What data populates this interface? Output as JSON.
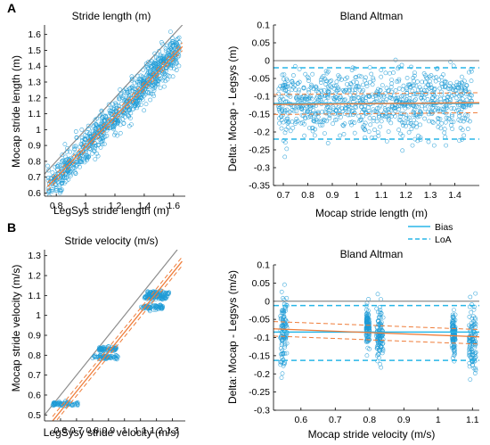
{
  "figure": {
    "panel_labels": [
      "A",
      "B"
    ],
    "legend": {
      "entries": [
        {
          "label": "Bias",
          "color": "#29b6e8",
          "style": "solid"
        },
        {
          "label": "LoA",
          "color": "#29b6e8",
          "style": "dashed"
        }
      ]
    },
    "colors": {
      "points": "#1f9bd6",
      "identity": "#8c8c8c",
      "regression": "#ef7d3a",
      "bias": "#29b6e8",
      "loa": "#29b6e8",
      "zero": "#8c8c8c"
    }
  },
  "chart_data": [
    {
      "type": "scatter",
      "title": "Stride length (m)",
      "xlabel": "LegSys stride length (m)",
      "ylabel": "Mocap stride length (m)",
      "xlim": [
        0.72,
        1.68
      ],
      "ylim": [
        0.58,
        1.66
      ],
      "xticks": [
        0.8,
        1,
        1.2,
        1.4,
        1.6
      ],
      "xticklabels": [
        "0.8",
        "1",
        "1.2",
        "1.4",
        "1.6"
      ],
      "yticks": [
        0.6,
        0.7,
        0.8,
        0.9,
        1.0,
        1.1,
        1.2,
        1.3,
        1.4,
        1.5,
        1.6
      ],
      "yticklabels": [
        "0.6",
        "0.7",
        "0.8",
        "0.9",
        "1",
        "1.1",
        "1.2",
        "1.3",
        "1.4",
        "1.5",
        "1.6"
      ],
      "identity_line": true,
      "regression": {
        "slope": 0.96,
        "intercept": -0.07,
        "ci_offset": 0.025
      },
      "points": {
        "n": 900,
        "x_range": [
          0.74,
          1.64
        ],
        "offset": -0.12,
        "spread": 0.055
      }
    },
    {
      "type": "scatter",
      "title": "Bland Altman",
      "xlabel": "Mocap stride length (m)",
      "ylabel": "Delta: Mocap - Legsys (m)",
      "xlim": [
        0.66,
        1.5
      ],
      "ylim": [
        -0.35,
        0.1
      ],
      "xticks": [
        0.7,
        0.8,
        0.9,
        1.0,
        1.1,
        1.2,
        1.3,
        1.4
      ],
      "xticklabels": [
        "0.7",
        "0.8",
        "0.9",
        "1",
        "1.1",
        "1.2",
        "1.3",
        "1.4"
      ],
      "yticks": [
        -0.35,
        -0.3,
        -0.25,
        -0.2,
        -0.15,
        -0.1,
        -0.05,
        0,
        0.05,
        0.1
      ],
      "yticklabels": [
        "-0.35",
        "-0.3",
        "-0.25",
        "-0.2",
        "-0.15",
        "-0.1",
        "-0.05",
        "0",
        "0.05",
        "0.1"
      ],
      "zero_line": 0,
      "bias": -0.12,
      "loa": [
        -0.02,
        -0.22
      ],
      "regression": {
        "start": -0.123,
        "end": -0.118,
        "ci_offset": 0.028
      },
      "points": {
        "n": 900,
        "x_range": [
          0.68,
          1.47
        ],
        "mean": -0.12,
        "spread": 0.045
      }
    },
    {
      "type": "scatter",
      "title": "Stride velocity (m/s)",
      "xlabel": "LegSysy stride velocity (m/s)",
      "ylabel": "Mocap stride velocity (m/s)",
      "xlim": [
        0.5,
        1.38
      ],
      "ylim": [
        0.47,
        1.33
      ],
      "xticks": [
        0.6,
        0.7,
        0.8,
        0.9,
        1.0,
        1.1,
        1.2,
        1.3
      ],
      "xticklabels": [
        "0.6",
        "0.7",
        "0.8",
        "0.9",
        "1",
        "1.1",
        "1.2",
        "1.3"
      ],
      "yticks": [
        0.5,
        0.6,
        0.7,
        0.8,
        0.9,
        1.0,
        1.1,
        1.2,
        1.3
      ],
      "yticklabels": [
        "0.5",
        "0.6",
        "0.7",
        "0.8",
        "0.9",
        "1",
        "1.1",
        "1.2",
        "1.3"
      ],
      "identity_line": true,
      "regression": {
        "slope": 0.99,
        "intercept": -0.075,
        "ci_offset": 0.022
      },
      "clusters": [
        {
          "x_range": [
            0.55,
            0.71
          ],
          "y": 0.555
        },
        {
          "x_range": [
            0.8,
            0.96
          ],
          "y": 0.79
        },
        {
          "x_range": [
            0.84,
            0.95
          ],
          "y": 0.83
        },
        {
          "x_range": [
            1.1,
            1.24
          ],
          "y": 1.04
        },
        {
          "x_range": [
            1.12,
            1.27
          ],
          "y": 1.09
        },
        {
          "x_range": [
            1.14,
            1.28
          ],
          "y": 1.11
        }
      ]
    },
    {
      "type": "scatter",
      "title": "Bland Altman",
      "xlabel": "Mocap stride velocity (m/s)",
      "ylabel": "Delta: Mocap - Legsys (m/s)",
      "xlim": [
        0.52,
        1.12
      ],
      "ylim": [
        -0.3,
        0.1
      ],
      "xticks": [
        0.6,
        0.7,
        0.8,
        0.9,
        1.0,
        1.1
      ],
      "xticklabels": [
        "0.6",
        "0.7",
        "0.8",
        "0.9",
        "1",
        "1.1"
      ],
      "yticks": [
        -0.3,
        -0.25,
        -0.2,
        -0.15,
        -0.1,
        -0.05,
        0,
        0.05,
        0.1
      ],
      "yticklabels": [
        "-0.3",
        "-0.25",
        "-0.2",
        "-0.15",
        "-0.1",
        "-0.05",
        "0",
        "0.05",
        "0.1"
      ],
      "zero_line": 0,
      "bias": -0.085,
      "loa": [
        -0.012,
        -0.163
      ],
      "regression": {
        "start": -0.076,
        "end": -0.098,
        "ci_offset": 0.02
      },
      "clusters": [
        {
          "x_range": [
            0.54,
            0.56
          ],
          "mean": -0.08,
          "spread": 0.05
        },
        {
          "x_range": [
            0.79,
            0.8
          ],
          "mean": -0.065,
          "spread": 0.025
        },
        {
          "x_range": [
            0.82,
            0.84
          ],
          "mean": -0.09,
          "spread": 0.04
        },
        {
          "x_range": [
            1.04,
            1.05
          ],
          "mean": -0.09,
          "spread": 0.025
        },
        {
          "x_range": [
            1.09,
            1.11
          ],
          "mean": -0.11,
          "spread": 0.05
        }
      ]
    }
  ]
}
